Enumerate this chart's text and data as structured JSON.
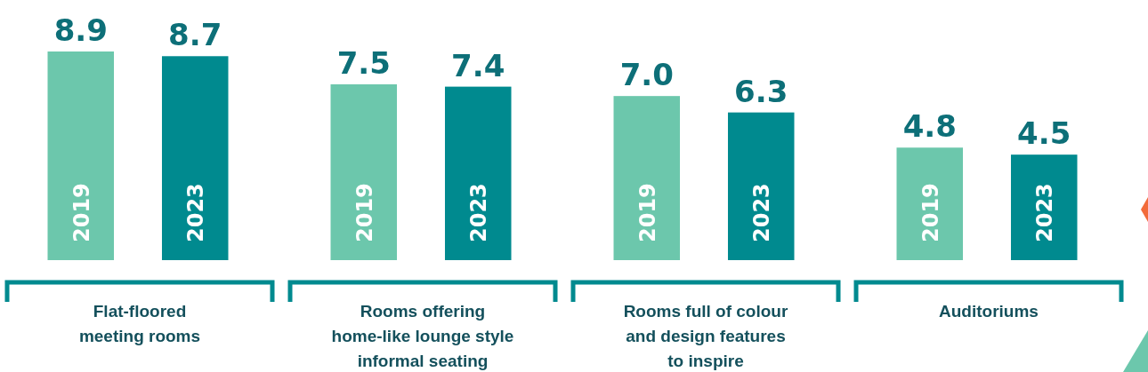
{
  "chart_data": {
    "type": "bar",
    "categories": [
      "Flat-floored\nmeeting rooms",
      "Rooms offering\nhome-like lounge style\ninformal seating",
      "Rooms full of colour\nand design features\nto inspire",
      "Auditoriums"
    ],
    "series": [
      {
        "name": "2019",
        "color": "#6cc7ac",
        "values": [
          8.9,
          7.5,
          7.0,
          4.8
        ],
        "value_labels": [
          "8.9",
          "7.5",
          "7.0",
          "4.8"
        ]
      },
      {
        "name": "2023",
        "color": "#008a8f",
        "values": [
          8.7,
          7.4,
          6.3,
          4.5
        ],
        "value_labels": [
          "8.7",
          "7.4",
          "6.3",
          "4.5"
        ]
      }
    ],
    "tick_labels": "x"
  }
}
